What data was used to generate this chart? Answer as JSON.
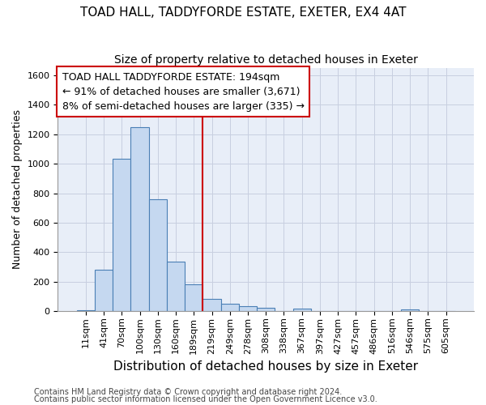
{
  "title": "TOAD HALL, TADDYFORDE ESTATE, EXETER, EX4 4AT",
  "subtitle": "Size of property relative to detached houses in Exeter",
  "xlabel": "Distribution of detached houses by size in Exeter",
  "ylabel": "Number of detached properties",
  "bar_labels": [
    "11sqm",
    "41sqm",
    "70sqm",
    "100sqm",
    "130sqm",
    "160sqm",
    "189sqm",
    "219sqm",
    "249sqm",
    "278sqm",
    "308sqm",
    "338sqm",
    "367sqm",
    "397sqm",
    "427sqm",
    "457sqm",
    "486sqm",
    "516sqm",
    "546sqm",
    "575sqm",
    "605sqm"
  ],
  "bar_values": [
    5,
    280,
    1035,
    1250,
    760,
    335,
    180,
    83,
    50,
    35,
    22,
    0,
    18,
    0,
    0,
    0,
    0,
    0,
    8,
    0,
    0
  ],
  "bar_color": "#c5d8f0",
  "bar_edge_color": "#4a7fb5",
  "vline_color": "#cc0000",
  "annotation_line1": "TOAD HALL TADDYFORDE ESTATE: 194sqm",
  "annotation_line2": "← 91% of detached houses are smaller (3,671)",
  "annotation_line3": "8% of semi-detached houses are larger (335) →",
  "annotation_box_edge_color": "#cc0000",
  "ylim": [
    0,
    1650
  ],
  "yticks": [
    0,
    200,
    400,
    600,
    800,
    1000,
    1200,
    1400,
    1600
  ],
  "footer_line1": "Contains HM Land Registry data © Crown copyright and database right 2024.",
  "footer_line2": "Contains public sector information licensed under the Open Government Licence v3.0.",
  "background_color": "#ffffff",
  "plot_bg_color": "#e8eef8",
  "grid_color": "#c8cfe0",
  "title_fontsize": 11,
  "subtitle_fontsize": 10,
  "ylabel_fontsize": 9,
  "xlabel_fontsize": 11,
  "tick_fontsize": 8,
  "annotation_fontsize": 9,
  "footer_fontsize": 7
}
